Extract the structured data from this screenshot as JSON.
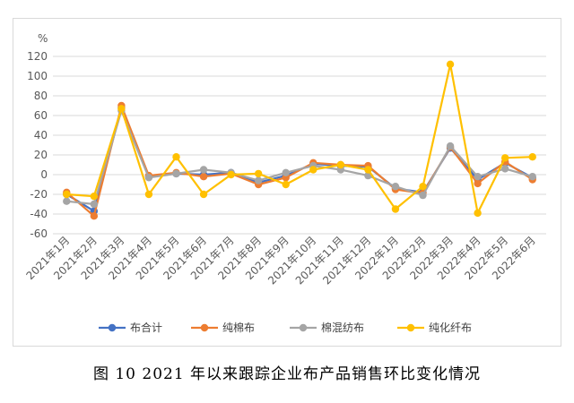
{
  "caption": "图 10   2021 年以来跟踪企业布产品销售环比变化情况",
  "chart_data": {
    "type": "line",
    "title": "",
    "ylabel": "%",
    "xlabel": "",
    "ylim": [
      -60,
      120
    ],
    "yticks": [
      -60,
      -40,
      -20,
      0,
      20,
      40,
      60,
      80,
      100,
      120
    ],
    "grid": true,
    "legend_position": "bottom",
    "categories": [
      "2021年1月",
      "2021年2月",
      "2021年3月",
      "2021年4月",
      "2021年5月",
      "2021年6月",
      "2021年7月",
      "2021年8月",
      "2021年9月",
      "2021年10月",
      "2021年11月",
      "2021年12月",
      "2022年1月",
      "2022年2月",
      "2022年3月",
      "2022年4月",
      "2022年5月",
      "2022年6月"
    ],
    "series": [
      {
        "name": "布合计",
        "color": "#4472c4",
        "values": [
          -20,
          -37,
          68,
          -2,
          1,
          0,
          2,
          -8,
          -1,
          11,
          9,
          8,
          -14,
          -18,
          27,
          -5,
          12,
          -3
        ]
      },
      {
        "name": "纯棉布",
        "color": "#ed7d31",
        "values": [
          -18,
          -42,
          70,
          -1,
          2,
          -2,
          1,
          -10,
          -3,
          12,
          10,
          9,
          -15,
          -19,
          28,
          -9,
          13,
          -5
        ]
      },
      {
        "name": "棉混纺布",
        "color": "#a5a5a5",
        "values": [
          -27,
          -30,
          65,
          -3,
          1,
          5,
          2,
          -6,
          2,
          9,
          5,
          -1,
          -12,
          -21,
          29,
          -2,
          6,
          -2
        ]
      },
      {
        "name": "纯化纤布",
        "color": "#ffc000",
        "values": [
          -20,
          -22,
          67,
          -20,
          18,
          -20,
          0,
          1,
          -10,
          5,
          10,
          5,
          -35,
          -12,
          112,
          -39,
          17,
          18
        ]
      }
    ]
  }
}
